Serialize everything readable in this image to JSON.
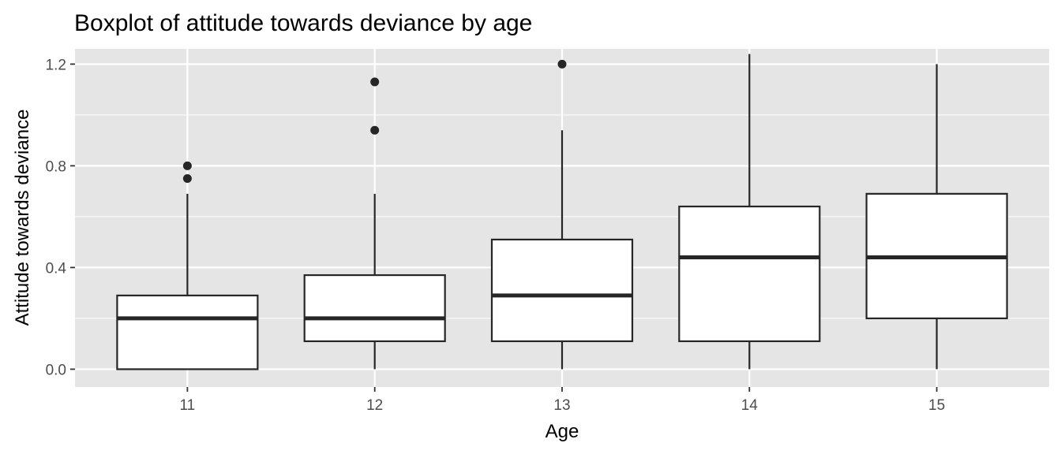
{
  "chart_data": {
    "type": "boxplot",
    "title": "Boxplot of attitude towards deviance by age",
    "xlabel": "Age",
    "ylabel": "Attitude towards deviance",
    "ylim": [
      -0.07,
      1.26
    ],
    "yticks": [
      0.0,
      0.4,
      0.8,
      1.2
    ],
    "ytick_labels": [
      "0.0",
      "0.4",
      "0.8",
      "1.2"
    ],
    "grid": true,
    "legend": "none",
    "categories": [
      "11",
      "12",
      "13",
      "14",
      "15"
    ],
    "boxes": [
      {
        "category": "11",
        "whisker_low": 0.0,
        "q1": 0.0,
        "median": 0.2,
        "q3": 0.29,
        "whisker_high": 0.69,
        "outliers": [
          0.75,
          0.8
        ]
      },
      {
        "category": "12",
        "whisker_low": 0.0,
        "q1": 0.11,
        "median": 0.2,
        "q3": 0.37,
        "whisker_high": 0.69,
        "outliers": [
          0.94,
          1.13
        ]
      },
      {
        "category": "13",
        "whisker_low": 0.0,
        "q1": 0.11,
        "median": 0.29,
        "q3": 0.51,
        "whisker_high": 0.94,
        "outliers": [
          1.2
        ]
      },
      {
        "category": "14",
        "whisker_low": 0.0,
        "q1": 0.11,
        "median": 0.44,
        "q3": 0.64,
        "whisker_high": 1.24,
        "outliers": []
      },
      {
        "category": "15",
        "whisker_low": 0.0,
        "q1": 0.2,
        "median": 0.44,
        "q3": 0.69,
        "whisker_high": 1.2,
        "outliers": []
      }
    ],
    "colors": {
      "panel": "#e5e5e5",
      "grid": "#ffffff",
      "box_fill": "#ffffff",
      "line": "#262626"
    }
  }
}
